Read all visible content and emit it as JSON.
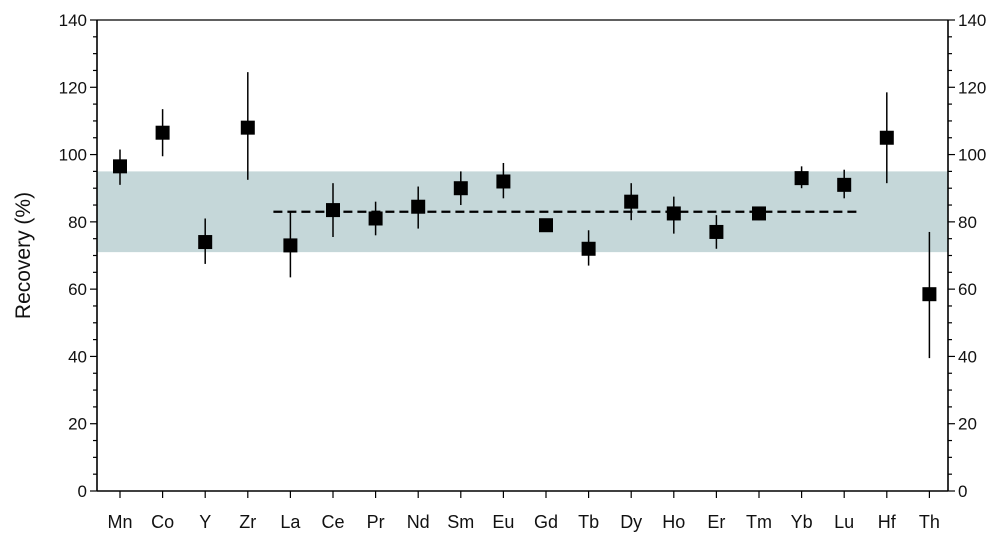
{
  "chart_data": {
    "type": "scatter",
    "title": "",
    "xlabel": "",
    "ylabel": "Recovery (%)",
    "ylim": [
      0,
      140
    ],
    "y_major_ticks": [
      0,
      20,
      40,
      60,
      80,
      100,
      120,
      140
    ],
    "y_minor_step": 5,
    "secondary_y_axis": true,
    "grid": false,
    "legend": "none",
    "categories": [
      "Mn",
      "Co",
      "Y",
      "Zr",
      "La",
      "Ce",
      "Pr",
      "Nd",
      "Sm",
      "Eu",
      "Gd",
      "Tb",
      "Dy",
      "Ho",
      "Er",
      "Tm",
      "Yb",
      "Lu",
      "Hf",
      "Th"
    ],
    "series": [
      {
        "values": [
          96.5,
          106.5,
          74,
          108,
          73,
          83.5,
          81,
          84.5,
          90,
          92,
          79,
          72,
          86,
          82.5,
          77,
          82.5,
          93,
          91,
          105,
          58.5
        ],
        "err_low": [
          91,
          99.5,
          67.5,
          92.5,
          63.5,
          75.5,
          76,
          78,
          85,
          87,
          77,
          67,
          80.5,
          76.5,
          72,
          80.5,
          90,
          87,
          91.5,
          39.5
        ],
        "err_high": [
          101.5,
          113.5,
          81,
          124.5,
          83,
          91.5,
          86,
          90.5,
          95,
          97.5,
          80.5,
          77.5,
          91.5,
          87.5,
          82,
          84,
          96.5,
          95.5,
          118.5,
          77
        ],
        "marker": "square",
        "color": "#000000"
      }
    ],
    "band": {
      "y_from": 71,
      "y_to": 95,
      "color": "#c5d7d9"
    },
    "reference_line": {
      "y": 83,
      "from_category": "La",
      "to_category": "Lu",
      "style": "dashed",
      "color": "#000000"
    }
  }
}
